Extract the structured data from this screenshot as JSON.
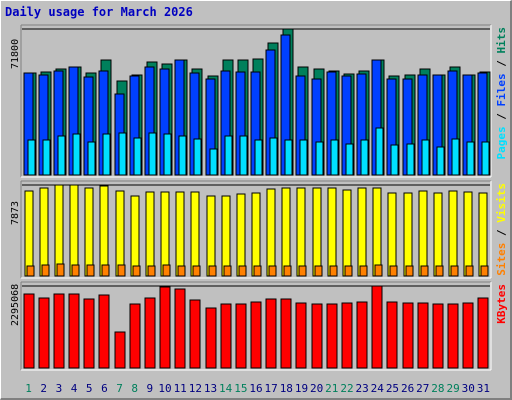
{
  "title": "Daily usage for March 2026",
  "colors": {
    "hits": "#00805c",
    "files": "#0040ff",
    "pages": "#00e0ff",
    "visits": "#ffff00",
    "sites": "#ff8000",
    "kbytes": "#ff0000",
    "weekend_day_label": "#00805c",
    "weekday_label": "#000080",
    "title": "#0000c0"
  },
  "chart_data": [
    {
      "type": "bar",
      "panel": "hits-files-pages",
      "ymax_label": "71800",
      "ylim": [
        0,
        71800
      ],
      "ylabel_parts": [
        {
          "text": "Pages",
          "color": "#00e0ff"
        },
        {
          "text": " / ",
          "color": "#000000"
        },
        {
          "text": "Files",
          "color": "#0040ff"
        },
        {
          "text": " / ",
          "color": "#000000"
        },
        {
          "text": "Hits",
          "color": "#00805c"
        }
      ],
      "categories": [
        "1",
        "2",
        "3",
        "4",
        "5",
        "6",
        "7",
        "8",
        "9",
        "10",
        "11",
        "12",
        "13",
        "14",
        "15",
        "16",
        "17",
        "18",
        "19",
        "20",
        "21",
        "22",
        "23",
        "24",
        "25",
        "26",
        "27",
        "28",
        "29",
        "30",
        "31"
      ],
      "series": [
        {
          "name": "Hits",
          "values": [
            50000,
            50800,
            52000,
            53300,
            50000,
            56400,
            46100,
            49200,
            55400,
            54800,
            56400,
            51900,
            48600,
            56400,
            56400,
            56900,
            65100,
            71800,
            52900,
            52000,
            51300,
            49700,
            51300,
            56400,
            48600,
            49200,
            52000,
            49200,
            53300,
            49200,
            50800
          ]
        },
        {
          "name": "Files",
          "values": [
            50000,
            49200,
            51300,
            53300,
            48100,
            51300,
            39900,
            48600,
            53300,
            52000,
            56400,
            50000,
            47400,
            51300,
            50800,
            50800,
            61300,
            68700,
            48600,
            47400,
            50800,
            48600,
            49700,
            56400,
            47400,
            47400,
            49200,
            49200,
            51300,
            49200,
            50000
          ]
        },
        {
          "name": "Pages",
          "values": [
            17400,
            17400,
            19000,
            20000,
            16400,
            20000,
            20500,
            18400,
            20500,
            20000,
            19000,
            17900,
            12800,
            19000,
            19000,
            17400,
            18400,
            17400,
            17400,
            16400,
            17400,
            15400,
            17400,
            23000,
            14800,
            15400,
            17400,
            13800,
            17900,
            16400,
            16400
          ]
        }
      ]
    },
    {
      "type": "bar",
      "panel": "visits-sites",
      "ymax_label": "7873",
      "ylim": [
        0,
        7873
      ],
      "ylabel_parts": [
        {
          "text": "Sites",
          "color": "#ff8000"
        },
        {
          "text": " / ",
          "color": "#000000"
        },
        {
          "text": "Visits",
          "color": "#ffff00"
        }
      ],
      "categories": [
        "1",
        "2",
        "3",
        "4",
        "5",
        "6",
        "7",
        "8",
        "9",
        "10",
        "11",
        "12",
        "13",
        "14",
        "15",
        "16",
        "17",
        "18",
        "19",
        "20",
        "21",
        "22",
        "23",
        "24",
        "25",
        "26",
        "27",
        "28",
        "29",
        "30",
        "31"
      ],
      "series": [
        {
          "name": "Visits",
          "values": [
            7320,
            7580,
            7870,
            7850,
            7580,
            7750,
            7330,
            6920,
            7250,
            7250,
            7310,
            7250,
            6920,
            6960,
            7060,
            7160,
            7500,
            7580,
            7580,
            7580,
            7580,
            7410,
            7580,
            7580,
            7160,
            7160,
            7330,
            7160,
            7330,
            7250,
            7160
          ]
        },
        {
          "name": "Sites",
          "values": [
            840,
            920,
            1000,
            960,
            920,
            960,
            920,
            840,
            880,
            920,
            840,
            840,
            840,
            840,
            840,
            840,
            840,
            840,
            840,
            840,
            840,
            840,
            840,
            920,
            840,
            840,
            840,
            840,
            840,
            840,
            840
          ]
        }
      ]
    },
    {
      "type": "bar",
      "panel": "kbytes",
      "ymax_label": "2295068",
      "ylim": [
        0,
        2295068
      ],
      "ylabel_parts": [
        {
          "text": "KBytes",
          "color": "#ff0000"
        }
      ],
      "categories": [
        "1",
        "2",
        "3",
        "4",
        "5",
        "6",
        "7",
        "8",
        "9",
        "10",
        "11",
        "12",
        "13",
        "14",
        "15",
        "16",
        "17",
        "18",
        "19",
        "20",
        "21",
        "22",
        "23",
        "24",
        "25",
        "26",
        "27",
        "28",
        "29",
        "30",
        "31"
      ],
      "series": [
        {
          "name": "KBytes",
          "values": [
            2060000,
            1950000,
            2070000,
            2060000,
            1920000,
            2030000,
            1000000,
            1780000,
            1960000,
            2270000,
            2200000,
            1890000,
            1690000,
            1800000,
            1800000,
            1840000,
            1930000,
            1930000,
            1810000,
            1780000,
            1790000,
            1830000,
            1850000,
            2295068,
            1850000,
            1810000,
            1810000,
            1790000,
            1800000,
            1810000,
            1950000
          ]
        }
      ]
    }
  ],
  "x_labels": [
    {
      "text": "1",
      "weekend": true
    },
    {
      "text": "2",
      "weekend": false
    },
    {
      "text": "3",
      "weekend": false
    },
    {
      "text": "4",
      "weekend": false
    },
    {
      "text": "5",
      "weekend": false
    },
    {
      "text": "6",
      "weekend": false
    },
    {
      "text": "7",
      "weekend": true
    },
    {
      "text": "8",
      "weekend": true
    },
    {
      "text": "9",
      "weekend": false
    },
    {
      "text": "10",
      "weekend": false
    },
    {
      "text": "11",
      "weekend": false
    },
    {
      "text": "12",
      "weekend": false
    },
    {
      "text": "13",
      "weekend": false
    },
    {
      "text": "14",
      "weekend": true
    },
    {
      "text": "15",
      "weekend": true
    },
    {
      "text": "16",
      "weekend": false
    },
    {
      "text": "17",
      "weekend": false
    },
    {
      "text": "18",
      "weekend": false
    },
    {
      "text": "19",
      "weekend": false
    },
    {
      "text": "20",
      "weekend": false
    },
    {
      "text": "21",
      "weekend": true
    },
    {
      "text": "22",
      "weekend": true
    },
    {
      "text": "23",
      "weekend": false
    },
    {
      "text": "24",
      "weekend": false
    },
    {
      "text": "25",
      "weekend": false
    },
    {
      "text": "26",
      "weekend": false
    },
    {
      "text": "27",
      "weekend": false
    },
    {
      "text": "28",
      "weekend": true
    },
    {
      "text": "29",
      "weekend": true
    },
    {
      "text": "30",
      "weekend": false
    },
    {
      "text": "31",
      "weekend": false
    }
  ]
}
